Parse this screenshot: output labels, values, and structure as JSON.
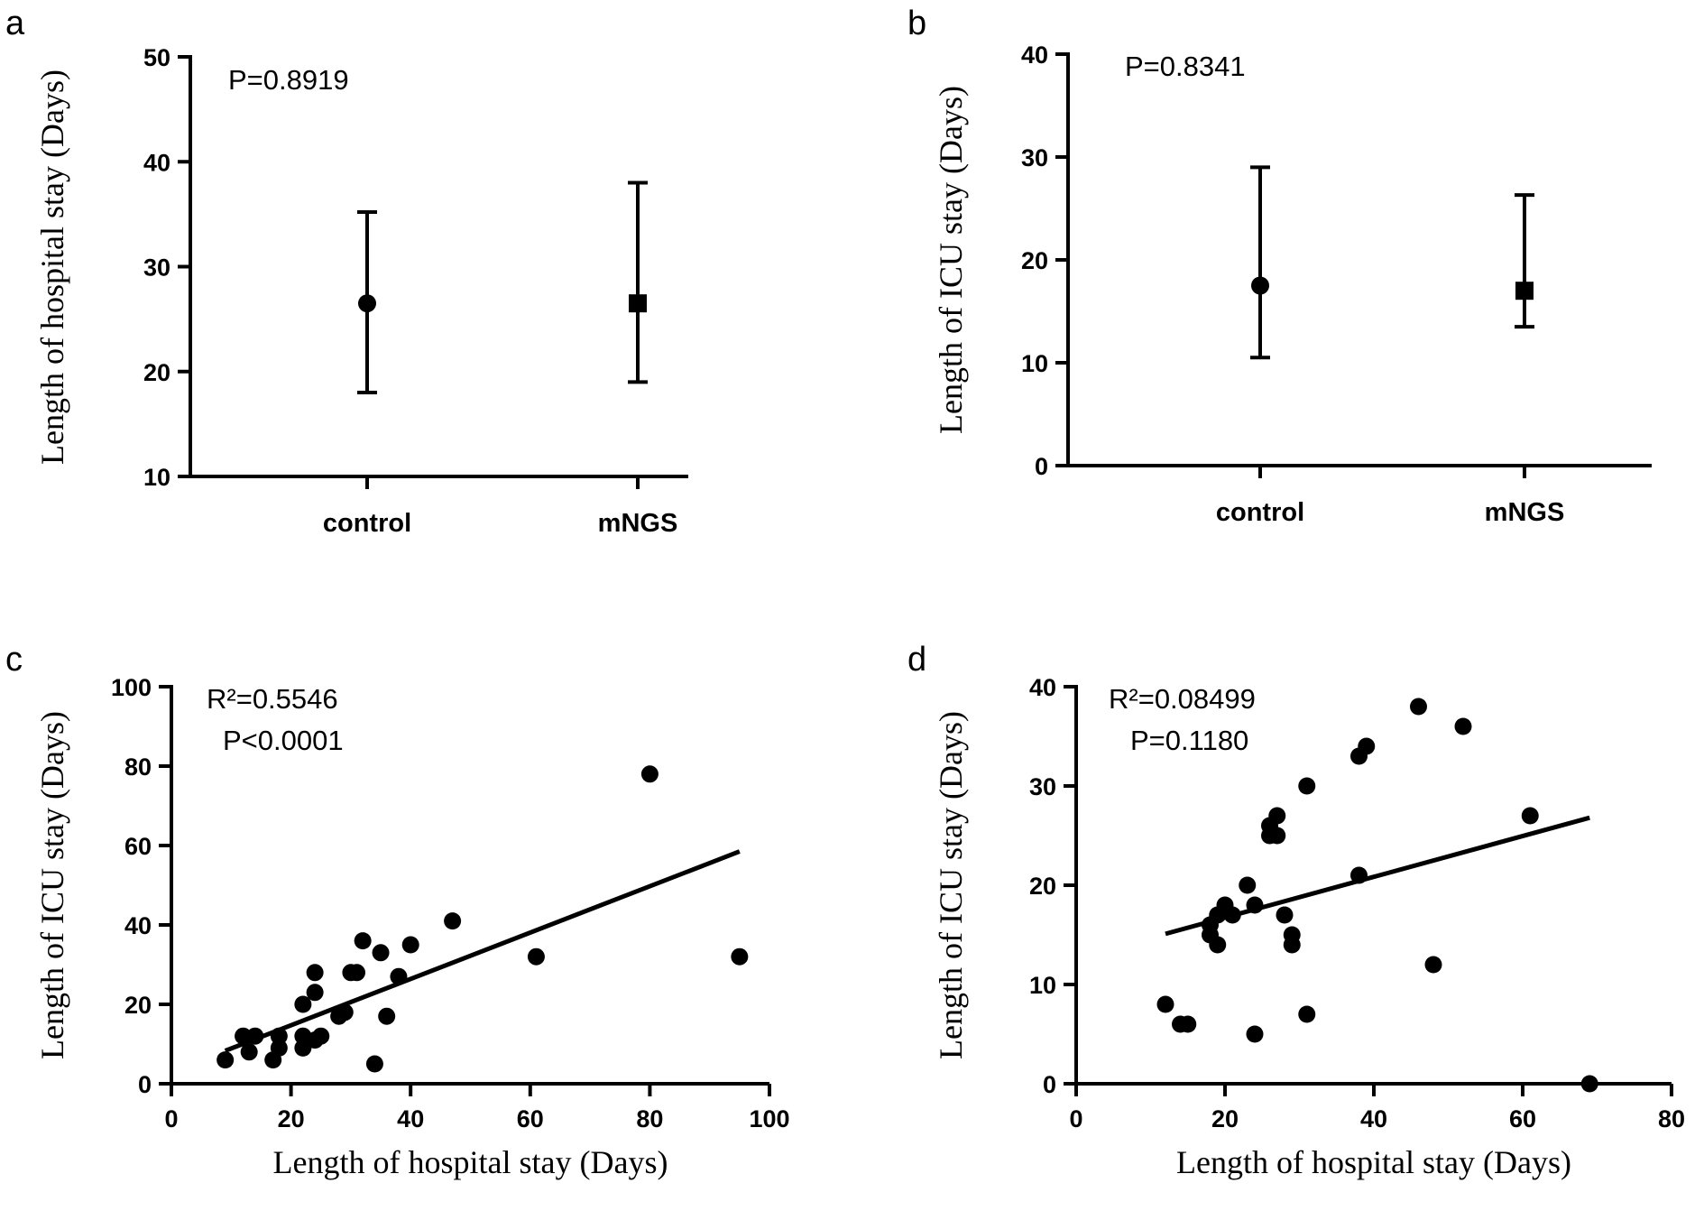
{
  "chart_data": [
    {
      "panel": "a",
      "type": "errorbar",
      "ylabel": "Length of hospital stay (Days)",
      "xlabel": "",
      "ylim": [
        10,
        50
      ],
      "yticks": [
        "10",
        "20",
        "30",
        "40",
        "50"
      ],
      "annotations": [
        "P=0.8919"
      ],
      "categories": [
        "control",
        "mNGS"
      ],
      "markers": [
        "circle",
        "square"
      ],
      "values": [
        26.5,
        26.5
      ],
      "lower": [
        18,
        19
      ],
      "upper": [
        35.2,
        38
      ]
    },
    {
      "panel": "b",
      "type": "errorbar",
      "ylabel": "Length of ICU stay (Days)",
      "xlabel": "",
      "ylim": [
        0,
        40
      ],
      "yticks": [
        "0",
        "10",
        "20",
        "30",
        "40"
      ],
      "annotations": [
        "P=0.8341"
      ],
      "categories": [
        "control",
        "mNGS"
      ],
      "markers": [
        "circle",
        "square"
      ],
      "values": [
        17.5,
        17
      ],
      "lower": [
        10.5,
        13.5
      ],
      "upper": [
        29,
        26.3
      ]
    },
    {
      "panel": "c",
      "type": "scatter",
      "xlabel": "Length of hospital stay (Days)",
      "ylabel": "Length of ICU stay (Days)",
      "xlim": [
        0,
        100
      ],
      "ylim": [
        0,
        100
      ],
      "xticks": [
        "0",
        "20",
        "40",
        "60",
        "80",
        "100"
      ],
      "yticks": [
        "0",
        "20",
        "40",
        "60",
        "80",
        "100"
      ],
      "annotations": [
        "R²=0.5546",
        "P<0.0001"
      ],
      "points": [
        [
          9,
          6
        ],
        [
          12,
          12
        ],
        [
          14,
          12
        ],
        [
          13,
          8
        ],
        [
          17,
          6
        ],
        [
          18,
          12
        ],
        [
          18,
          9
        ],
        [
          22,
          12
        ],
        [
          22,
          9
        ],
        [
          22,
          20
        ],
        [
          24,
          28
        ],
        [
          24,
          23
        ],
        [
          24,
          11
        ],
        [
          25,
          12
        ],
        [
          28,
          17
        ],
        [
          29,
          18
        ],
        [
          30,
          28
        ],
        [
          31,
          28
        ],
        [
          32,
          36
        ],
        [
          34,
          5
        ],
        [
          35,
          33
        ],
        [
          36,
          17
        ],
        [
          38,
          27
        ],
        [
          40,
          35
        ],
        [
          47,
          41
        ],
        [
          61,
          32
        ],
        [
          80,
          78
        ],
        [
          95,
          32
        ]
      ],
      "fit": {
        "x": [
          9,
          95
        ],
        "y": [
          8.3,
          58.5
        ]
      }
    },
    {
      "panel": "d",
      "type": "scatter",
      "xlabel": "Length of hospital stay (Days)",
      "ylabel": "Length of ICU stay (Days)",
      "xlim": [
        0,
        80
      ],
      "ylim": [
        0,
        40
      ],
      "xticks": [
        "0",
        "20",
        "40",
        "60",
        "80"
      ],
      "yticks": [
        "0",
        "10",
        "20",
        "30",
        "40"
      ],
      "annotations": [
        "R²=0.08499",
        "P=0.1180"
      ],
      "points": [
        [
          12,
          8
        ],
        [
          14,
          6
        ],
        [
          15,
          6
        ],
        [
          18,
          15
        ],
        [
          18,
          16
        ],
        [
          19,
          14
        ],
        [
          19,
          17
        ],
        [
          20,
          18
        ],
        [
          21,
          17
        ],
        [
          23,
          20
        ],
        [
          24,
          18
        ],
        [
          24,
          5
        ],
        [
          26,
          26
        ],
        [
          26,
          25
        ],
        [
          27,
          27
        ],
        [
          27,
          25
        ],
        [
          28,
          17
        ],
        [
          29,
          15
        ],
        [
          29,
          14
        ],
        [
          31,
          30
        ],
        [
          31,
          7
        ],
        [
          38,
          33
        ],
        [
          39,
          34
        ],
        [
          38,
          21
        ],
        [
          46,
          38
        ],
        [
          48,
          12
        ],
        [
          52,
          36
        ],
        [
          61,
          27
        ],
        [
          69,
          0
        ]
      ],
      "fit": {
        "x": [
          12,
          69
        ],
        "y": [
          15.1,
          26.8
        ]
      }
    }
  ]
}
